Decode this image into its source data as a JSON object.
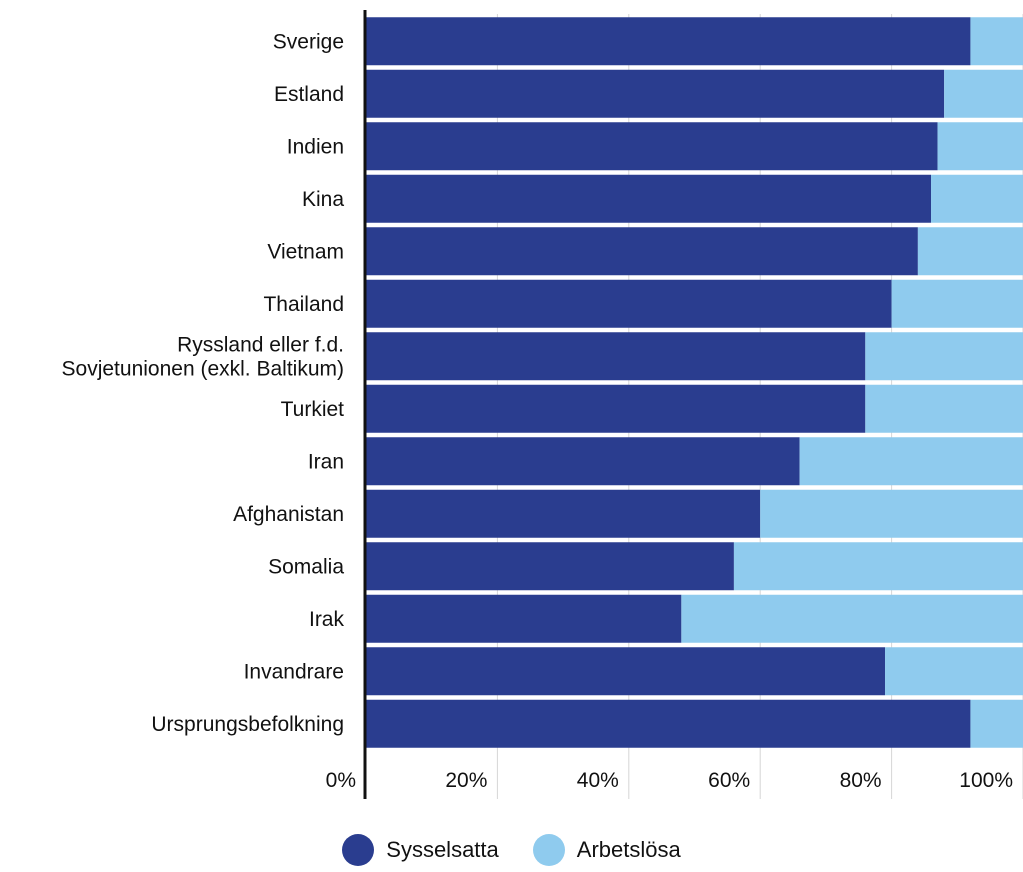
{
  "chart_data": {
    "type": "bar",
    "orientation": "horizontal",
    "stacked": true,
    "categories": [
      "Sverige",
      "Estland",
      "Indien",
      "Kina",
      "Vietnam",
      "Thailand",
      "Ryssland eller f.d. Sovjetunionen (exkl. Baltikum)",
      "Turkiet",
      "Iran",
      "Afghanistan",
      "Somalia",
      "Irak",
      "Invandrare",
      "Ursprungsbefolkning"
    ],
    "series": [
      {
        "name": "Sysselsatta",
        "color": "#2a3d8f",
        "values": [
          92,
          88,
          87,
          86,
          84,
          80,
          76,
          76,
          66,
          60,
          56,
          48,
          79,
          92
        ]
      },
      {
        "name": "Arbetslösa",
        "color": "#8fcbee",
        "values": [
          8,
          12,
          13,
          14,
          16,
          20,
          24,
          24,
          34,
          40,
          44,
          52,
          21,
          8
        ]
      }
    ],
    "xlim": [
      0,
      100
    ],
    "ticks": [
      "0%",
      "20%",
      "40%",
      "60%",
      "80%",
      "100%"
    ],
    "grid": true,
    "legend_position": "bottom-center"
  }
}
